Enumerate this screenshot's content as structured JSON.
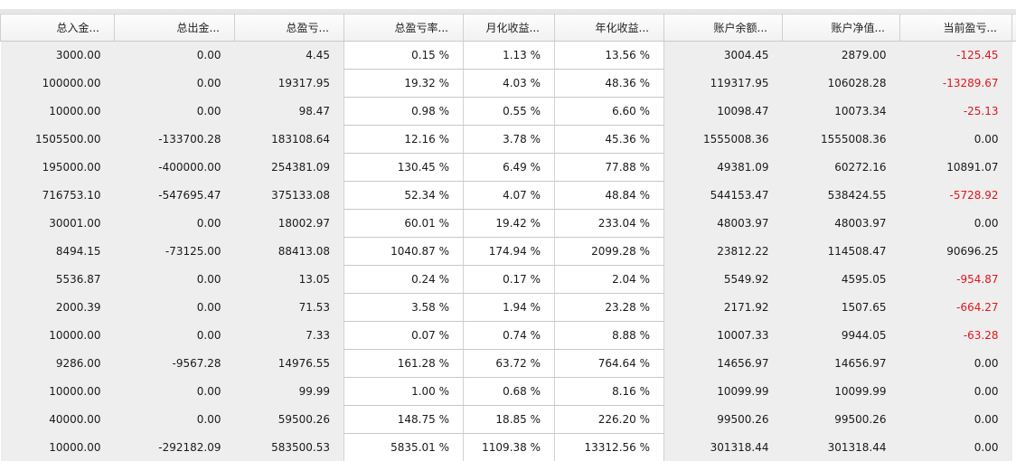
{
  "columns": [
    "总入金...",
    "总出金...",
    "总盈亏...",
    "总盈亏率...",
    "月化收益...",
    "年化收益...",
    "账户余额...",
    "账户净值...",
    "当前盈亏..."
  ],
  "rows": [
    [
      "3000.00",
      "0.00",
      "4.45",
      "0.15 %",
      "1.13 %",
      "13.56 %",
      "3004.45",
      "2879.00",
      "-125.45"
    ],
    [
      "100000.00",
      "0.00",
      "19317.95",
      "19.32 %",
      "4.03 %",
      "48.36 %",
      "119317.95",
      "106028.28",
      "-13289.67"
    ],
    [
      "10000.00",
      "0.00",
      "98.47",
      "0.98 %",
      "0.55 %",
      "6.60 %",
      "10098.47",
      "10073.34",
      "-25.13"
    ],
    [
      "1505500.00",
      "-133700.28",
      "183108.64",
      "12.16 %",
      "3.78 %",
      "45.36 %",
      "1555008.36",
      "1555008.36",
      "0.00"
    ],
    [
      "195000.00",
      "-400000.00",
      "254381.09",
      "130.45 %",
      "6.49 %",
      "77.88 %",
      "49381.09",
      "60272.16",
      "10891.07"
    ],
    [
      "716753.10",
      "-547695.47",
      "375133.08",
      "52.34 %",
      "4.07 %",
      "48.84 %",
      "544153.47",
      "538424.55",
      "-5728.92"
    ],
    [
      "30001.00",
      "0.00",
      "18002.97",
      "60.01 %",
      "19.42 %",
      "233.04 %",
      "48003.97",
      "48003.97",
      "0.00"
    ],
    [
      "8494.15",
      "-73125.00",
      "88413.08",
      "1040.87 %",
      "174.94 %",
      "2099.28 %",
      "23812.22",
      "114508.47",
      "90696.25"
    ],
    [
      "5536.87",
      "0.00",
      "13.05",
      "0.24 %",
      "0.17 %",
      "2.04 %",
      "5549.92",
      "4595.05",
      "-954.87"
    ],
    [
      "2000.39",
      "0.00",
      "71.53",
      "3.58 %",
      "1.94 %",
      "23.28 %",
      "2171.92",
      "1507.65",
      "-664.27"
    ],
    [
      "10000.00",
      "0.00",
      "7.33",
      "0.07 %",
      "0.74 %",
      "8.88 %",
      "10007.33",
      "9944.05",
      "-63.28"
    ],
    [
      "9286.00",
      "-9567.28",
      "14976.55",
      "161.28 %",
      "63.72 %",
      "764.64 %",
      "14656.97",
      "14656.97",
      "0.00"
    ],
    [
      "10000.00",
      "0.00",
      "99.99",
      "1.00 %",
      "0.68 %",
      "8.16 %",
      "10099.99",
      "10099.99",
      "0.00"
    ],
    [
      "40000.00",
      "0.00",
      "59500.26",
      "148.75 %",
      "18.85 %",
      "226.20 %",
      "99500.26",
      "99500.26",
      "0.00"
    ],
    [
      "10000.00",
      "-292182.09",
      "583500.53",
      "5835.01 %",
      "1109.38 %",
      "13312.56 %",
      "301318.44",
      "301318.44",
      "0.00"
    ]
  ],
  "colors": {
    "negative": "#e0161c",
    "shaded_column": "#eeeeee",
    "header_background": "#f4f4f4"
  }
}
